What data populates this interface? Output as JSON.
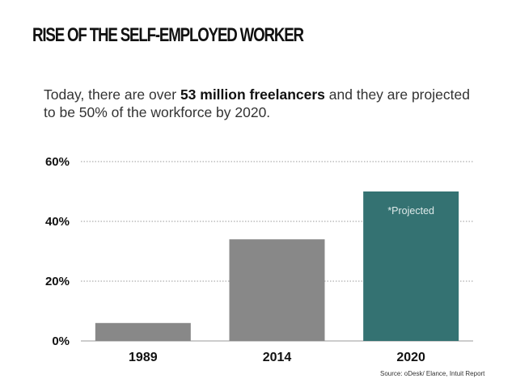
{
  "header": {
    "title": "RISE OF THE SELF-EMPLOYED WORKER",
    "subtitle_before": "Today, there are over ",
    "subtitle_bold": "53 million freelancers",
    "subtitle_after": " and they are projected to be 50% of the workforce by 2020."
  },
  "chart_data": {
    "type": "bar",
    "categories": [
      "1989",
      "2014",
      "2020"
    ],
    "values": [
      6,
      34,
      50
    ],
    "ylim": [
      0,
      60
    ],
    "yticks": [
      0,
      20,
      40,
      60
    ],
    "ytick_labels": [
      "0%",
      "20%",
      "40%",
      "60%"
    ],
    "grid": true,
    "bar_colors": [
      "#888888",
      "#888888",
      "#347272"
    ],
    "annotations": [
      {
        "category": "2020",
        "text": "*Projected"
      }
    ]
  },
  "footer": {
    "source": "Source: oDesk/ Elance, Intuit Report"
  }
}
